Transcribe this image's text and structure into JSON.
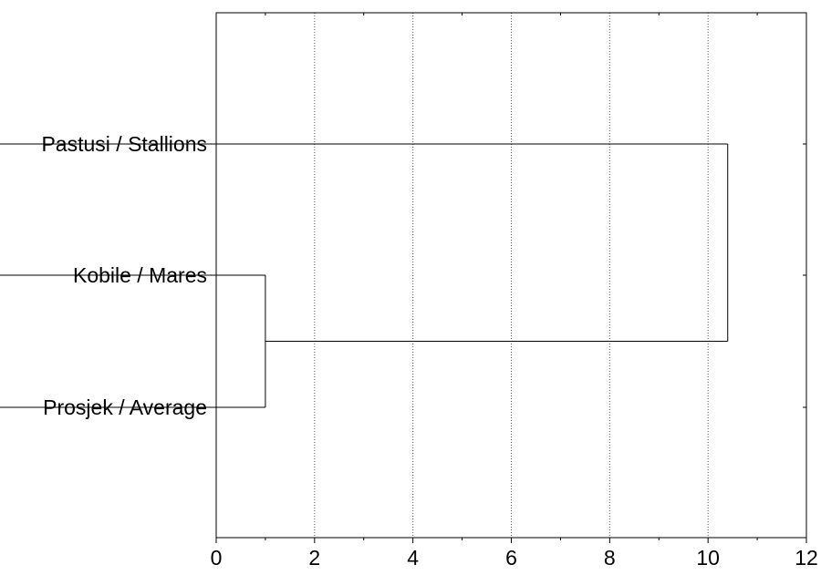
{
  "chart_data": {
    "type": "dendrogram",
    "orientation": "horizontal",
    "leaves": [
      "Pastusi / Stallions",
      "Kobile / Mares",
      "Prosjek / Average"
    ],
    "merges": [
      {
        "members": [
          "Kobile / Mares",
          "Prosjek / Average"
        ],
        "distance": 1.0
      },
      {
        "members": [
          "Pastusi / Stallions",
          "Kobile / Mares",
          "Prosjek / Average"
        ],
        "distance": 10.4
      }
    ],
    "x": {
      "ticks": [
        0,
        2,
        4,
        6,
        8,
        10,
        12
      ],
      "lim": [
        0,
        12
      ]
    },
    "grid": "vertical dotted",
    "title": "",
    "xlabel": "",
    "ylabel": ""
  }
}
